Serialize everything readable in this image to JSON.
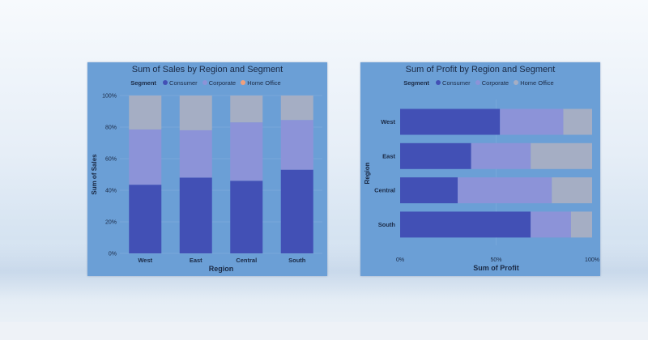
{
  "colors": {
    "consumer": "#4250b5",
    "corporate": "#8c93d8",
    "home_office": "#a5aec4",
    "legend_home_office": "#f0a07c"
  },
  "legend": {
    "title": "Segment",
    "items": [
      "Consumer",
      "Corporate",
      "Home Office"
    ]
  },
  "chart_data": [
    {
      "type": "bar",
      "orientation": "vertical",
      "stacking": "percent",
      "title": "Sum of Sales by Region and Segment",
      "xlabel": "Region",
      "ylabel": "Sum of Sales",
      "categories": [
        "West",
        "East",
        "Central",
        "South"
      ],
      "series": [
        {
          "name": "Consumer",
          "values": [
            43.5,
            48,
            46,
            53
          ]
        },
        {
          "name": "Corporate",
          "values": [
            35,
            30,
            37,
            31.5
          ]
        },
        {
          "name": "Home Office",
          "values": [
            21.5,
            22,
            17,
            15.5
          ]
        }
      ],
      "ylim": [
        0,
        100
      ],
      "ticks": [
        "0%",
        "20%",
        "40%",
        "60%",
        "80%",
        "100%"
      ],
      "tick_values": [
        0,
        20,
        40,
        60,
        80,
        100
      ],
      "legend_position": "top"
    },
    {
      "type": "bar",
      "orientation": "horizontal",
      "stacking": "percent",
      "title": "Sum of Profit by Region and Segment",
      "xlabel": "Sum of Profit",
      "ylabel": "Region",
      "categories": [
        "West",
        "East",
        "Central",
        "South"
      ],
      "series": [
        {
          "name": "Consumer",
          "values": [
            52,
            37,
            30,
            68
          ]
        },
        {
          "name": "Corporate",
          "values": [
            33,
            31,
            49,
            21
          ]
        },
        {
          "name": "Home Office",
          "values": [
            15,
            32,
            21,
            11
          ]
        }
      ],
      "xlim": [
        0,
        100
      ],
      "ticks": [
        "0%",
        "50%",
        "100%"
      ],
      "tick_values": [
        0,
        50,
        100
      ],
      "legend_position": "top"
    }
  ]
}
